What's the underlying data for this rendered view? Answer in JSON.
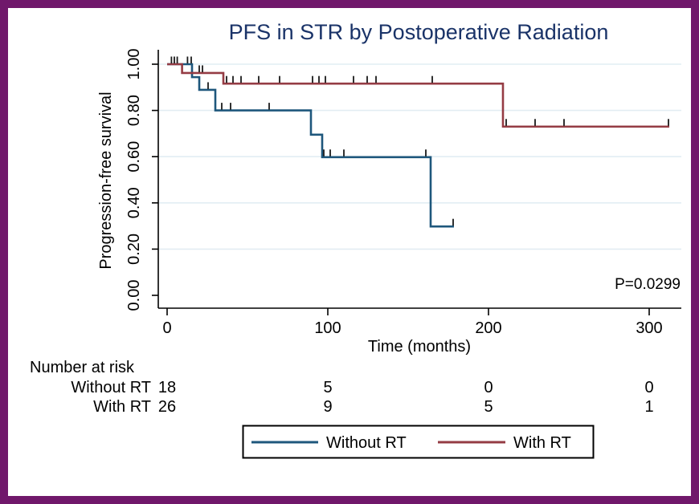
{
  "frame": {
    "border_color": "#70186b"
  },
  "chart_data": {
    "type": "line",
    "subtype": "kaplan-meier-step-function",
    "title": "PFS in STR by Postoperative Radiation",
    "xlabel": "Time (months)",
    "ylabel": "Progression-free survival",
    "xlim": [
      0,
      320
    ],
    "ylim": [
      0,
      1
    ],
    "x_ticks": [
      0,
      100,
      200,
      300
    ],
    "y_ticks": [
      {
        "value": 0.0,
        "label": "0.00"
      },
      {
        "value": 0.2,
        "label": "0.20"
      },
      {
        "value": 0.4,
        "label": "0.40"
      },
      {
        "value": 0.6,
        "label": "0.60"
      },
      {
        "value": 0.8,
        "label": "0.80"
      },
      {
        "value": 1.0,
        "label": "1.00"
      }
    ],
    "grid": "horizontal-light-blue",
    "gridline_color": "#e2edf3",
    "p_value_label": "P=0.0299",
    "series": [
      {
        "name": "Without RT",
        "color": "#1e577c",
        "steps": [
          [
            0,
            1.0
          ],
          [
            15.5,
            0.944
          ],
          [
            20,
            0.889
          ],
          [
            30,
            0.8
          ],
          [
            89.5,
            0.695
          ],
          [
            96.5,
            0.598
          ],
          [
            164,
            0.298
          ]
        ],
        "end_time": 178.5,
        "censor_marks": [
          [
            2.7,
            1.0
          ],
          [
            4.5,
            1.0
          ],
          [
            6.3,
            1.0
          ],
          [
            12.7,
            1.0
          ],
          [
            15.0,
            1.0
          ],
          [
            25.5,
            0.889
          ],
          [
            34,
            0.8
          ],
          [
            39.5,
            0.8
          ],
          [
            63.5,
            0.8
          ],
          [
            97.5,
            0.598
          ],
          [
            101.5,
            0.598
          ],
          [
            110,
            0.598
          ],
          [
            161,
            0.598
          ],
          [
            178,
            0.298
          ]
        ]
      },
      {
        "name": "With RT",
        "color": "#953c44",
        "steps": [
          [
            0,
            1.0
          ],
          [
            9.3,
            0.962
          ],
          [
            35,
            0.916
          ],
          [
            209,
            0.73
          ]
        ],
        "end_time": 312.5,
        "censor_marks": [
          [
            20,
            0.962
          ],
          [
            22,
            0.962
          ],
          [
            37,
            0.916
          ],
          [
            41,
            0.916
          ],
          [
            46,
            0.916
          ],
          [
            57,
            0.916
          ],
          [
            70,
            0.916
          ],
          [
            90.5,
            0.916
          ],
          [
            94.5,
            0.916
          ],
          [
            98.5,
            0.916
          ],
          [
            116,
            0.916
          ],
          [
            124.5,
            0.916
          ],
          [
            130,
            0.916
          ],
          [
            165,
            0.916
          ],
          [
            211,
            0.73
          ],
          [
            229,
            0.73
          ],
          [
            247,
            0.73
          ],
          [
            312,
            0.73
          ]
        ]
      }
    ],
    "risk_table": {
      "header": "Number at risk",
      "time_points": [
        0,
        100,
        200,
        300
      ],
      "rows": [
        {
          "label": "Without RT",
          "counts": [
            "18",
            "5",
            "0",
            "0"
          ]
        },
        {
          "label": "With RT",
          "counts": [
            "26",
            "9",
            "5",
            "1"
          ]
        }
      ]
    },
    "legend": {
      "position": "bottom-center",
      "entries": [
        {
          "label": "Without RT",
          "color": "#1e577c"
        },
        {
          "label": "With RT",
          "color": "#953c44"
        }
      ]
    }
  }
}
